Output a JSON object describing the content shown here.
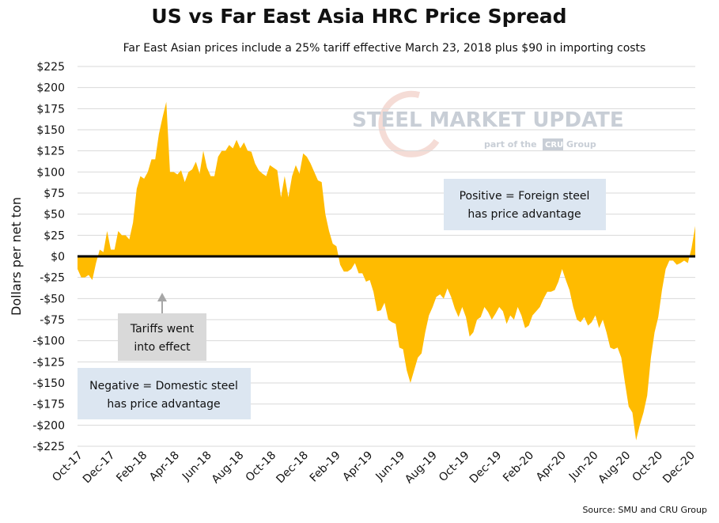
{
  "colors": {
    "area": "#FFBB00",
    "zero_line": "#000000",
    "grid": "#d9d9d9",
    "note_box": "#dce6f1",
    "tariff_box": "#d9d9d9",
    "arrow": "#a6a6a6"
  },
  "watermark": {
    "main": "STEEL MARKET UPDATE",
    "sub": "part of the",
    "group_badge": "CRU",
    "group_word": "Group"
  },
  "chart_data": {
    "type": "area",
    "title": "US vs Far East Asia HRC Price Spread",
    "subtitle": "Far East Asian prices include a 25% tariff effective March 23, 2018 plus $90 in importing costs",
    "ylabel": "Dollars per net ton",
    "xlabel": "",
    "ylim": [
      -225,
      225
    ],
    "y_ticks": [
      "$225",
      "$200",
      "$175",
      "$150",
      "$125",
      "$100",
      "$75",
      "$50",
      "$25",
      "$0",
      "-$25",
      "-$50",
      "-$75",
      "-$100",
      "-$125",
      "-$150",
      "-$175",
      "-$200",
      "-$225"
    ],
    "x_tick_labels": [
      "Oct-17",
      "Dec-17",
      "Feb-18",
      "Apr-18",
      "Jun-18",
      "Aug-18",
      "Oct-18",
      "Dec-18",
      "Feb-19",
      "Apr-19",
      "Jun-19",
      "Aug-19",
      "Oct-19",
      "Dec-19",
      "Feb-20",
      "Apr-20",
      "Jun-20",
      "Aug-20",
      "Oct-20",
      "Dec-20"
    ],
    "grid": "horizontal",
    "values": [
      -15,
      -25,
      -25,
      -22,
      -28,
      -8,
      8,
      5,
      30,
      8,
      8,
      30,
      25,
      25,
      20,
      40,
      80,
      95,
      92,
      100,
      115,
      115,
      145,
      165,
      183,
      100,
      100,
      97,
      102,
      88,
      100,
      103,
      112,
      98,
      125,
      105,
      95,
      95,
      118,
      125,
      125,
      132,
      128,
      138,
      128,
      135,
      125,
      124,
      110,
      102,
      98,
      95,
      108,
      105,
      102,
      70,
      95,
      70,
      95,
      108,
      98,
      122,
      118,
      110,
      100,
      90,
      88,
      50,
      30,
      15,
      12,
      -10,
      -18,
      -18,
      -15,
      -8,
      -20,
      -20,
      -30,
      -28,
      -42,
      -65,
      -64,
      -55,
      -75,
      -78,
      -80,
      -108,
      -110,
      -135,
      -150,
      -135,
      -120,
      -115,
      -90,
      -70,
      -60,
      -48,
      -45,
      -50,
      -38,
      -48,
      -62,
      -72,
      -60,
      -72,
      -95,
      -90,
      -75,
      -72,
      -60,
      -66,
      -75,
      -68,
      -60,
      -65,
      -80,
      -70,
      -75,
      -60,
      -70,
      -85,
      -82,
      -70,
      -65,
      -60,
      -50,
      -42,
      -42,
      -40,
      -30,
      -15,
      -28,
      -40,
      -60,
      -75,
      -78,
      -72,
      -82,
      -78,
      -70,
      -85,
      -75,
      -90,
      -108,
      -110,
      -108,
      -120,
      -150,
      -178,
      -185,
      -218,
      -200,
      -185,
      -165,
      -120,
      -90,
      -72,
      -40,
      -15,
      -5,
      -5,
      -10,
      -8,
      -5,
      -8,
      10,
      36
    ],
    "annotations": [
      {
        "text": [
          "Positive = Foreign steel",
          "has price advantage"
        ]
      },
      {
        "text": [
          "Negative = Domestic steel",
          "has price advantage"
        ]
      },
      {
        "text": [
          "Tariffs went",
          "into effect"
        ]
      }
    ],
    "source": "Source: SMU and CRU Group"
  }
}
